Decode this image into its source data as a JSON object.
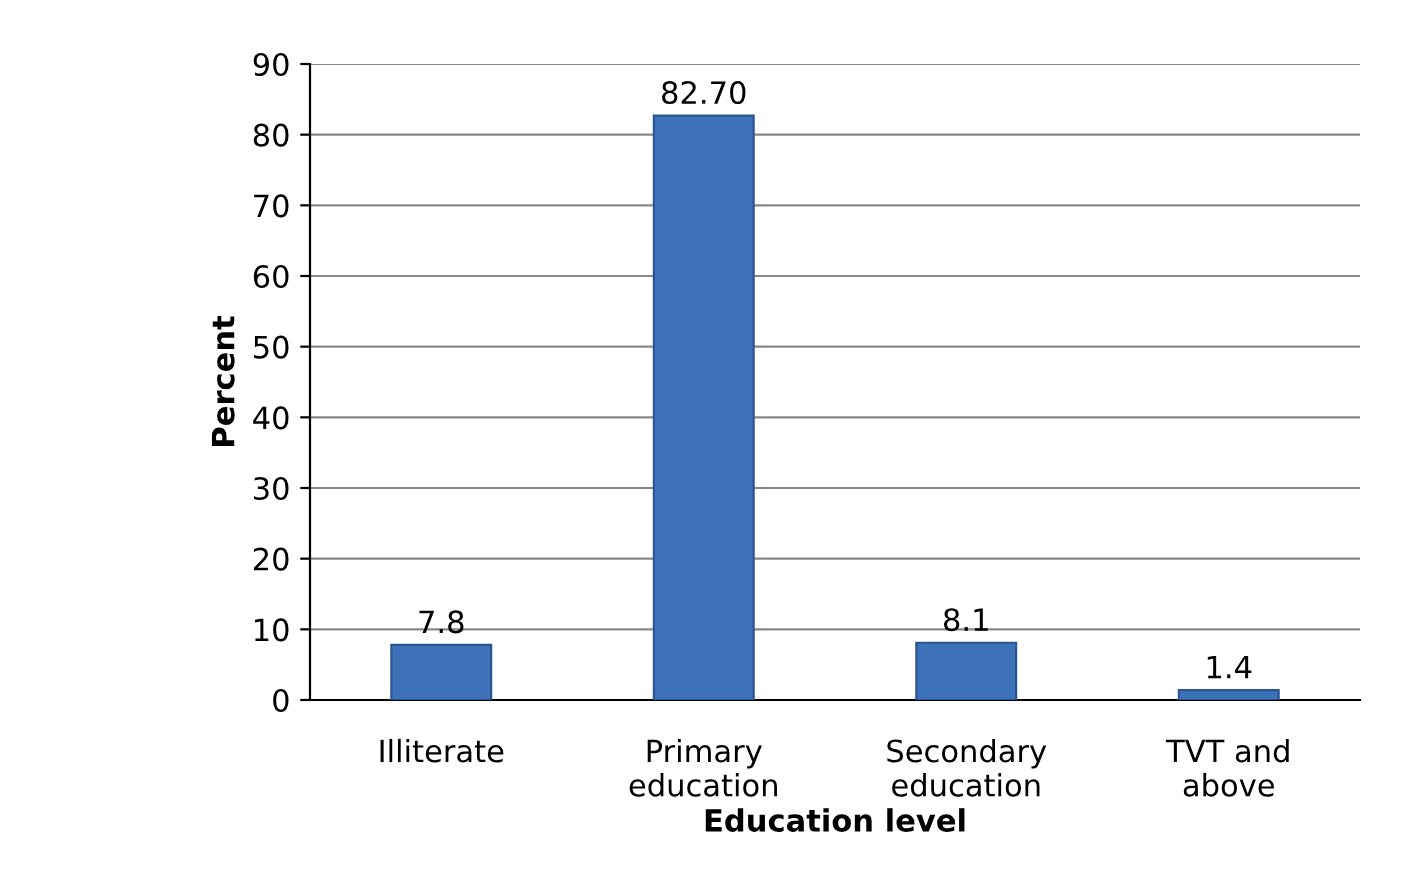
{
  "chart_data": {
    "type": "bar",
    "xlabel": "Education level",
    "ylabel": "Percent",
    "categories": [
      "Illiterate",
      "Primary\neducation",
      "Secondary\neducation",
      "TVT and\nabove"
    ],
    "values": [
      7.8,
      82.7,
      8.1,
      1.4
    ],
    "value_labels": [
      "7.8",
      "82.70",
      "8.1",
      "1.4"
    ],
    "color": "#3d72b8",
    "ylim": [
      0,
      90
    ],
    "yticks": [
      0,
      10,
      20,
      30,
      40,
      50,
      60,
      70,
      80,
      90
    ],
    "grid": "y",
    "legend": false
  }
}
